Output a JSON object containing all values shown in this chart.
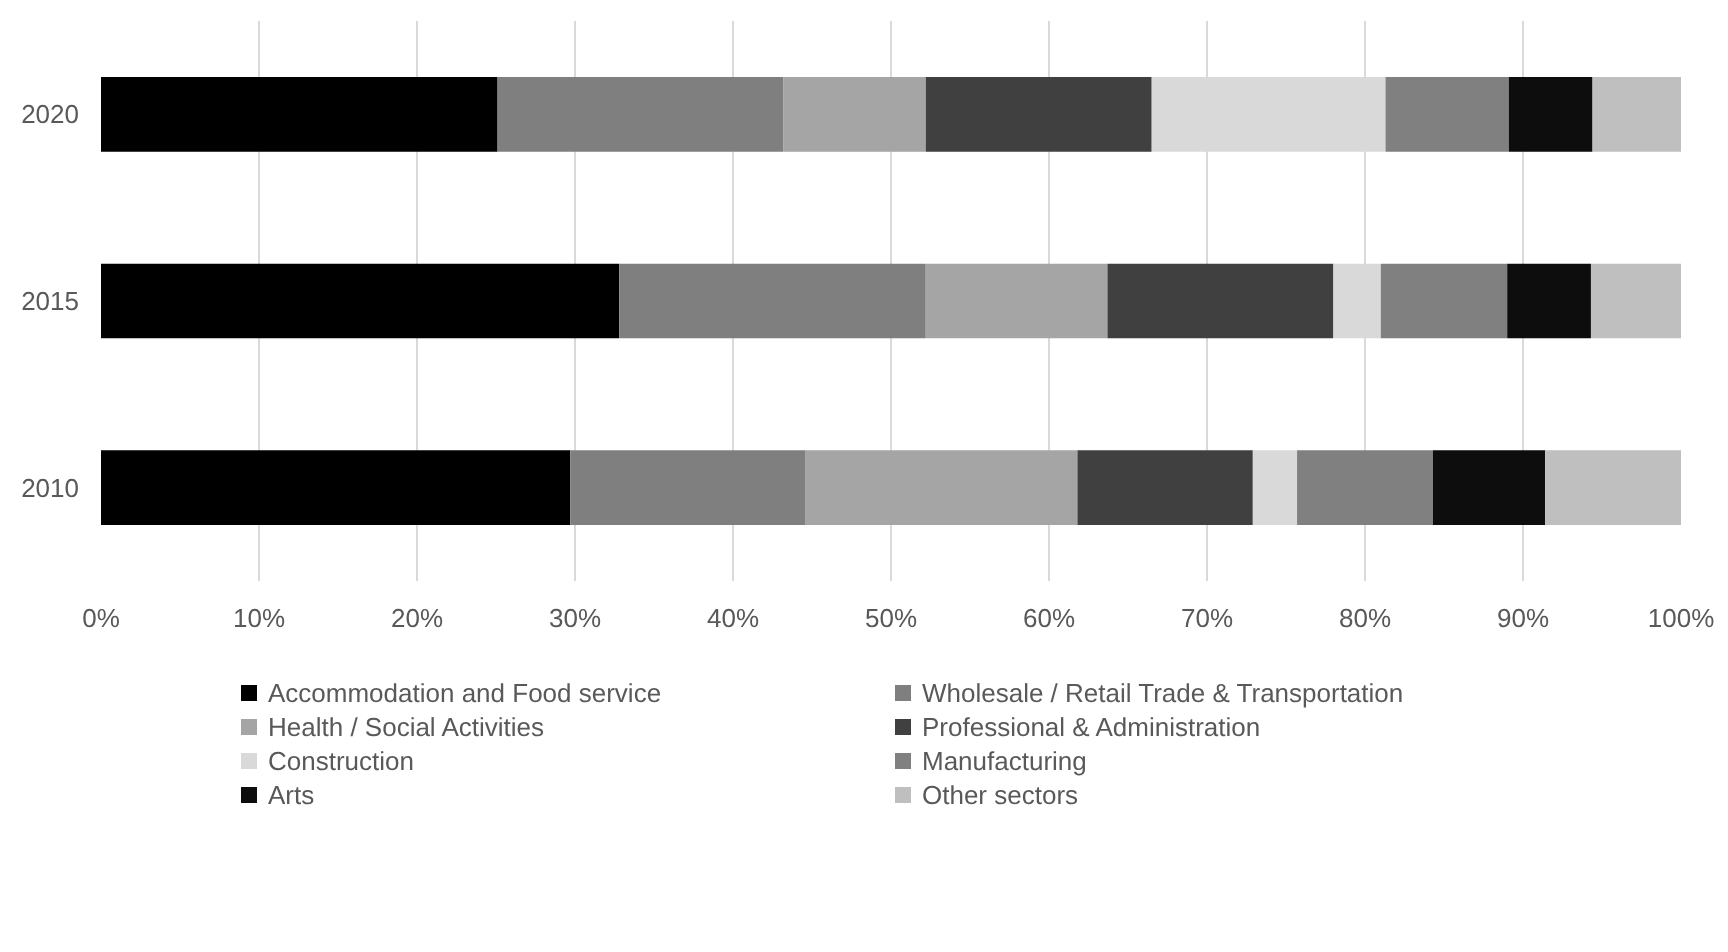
{
  "chart_data": {
    "type": "bar",
    "orientation": "horizontal",
    "stacked": true,
    "categories": [
      "2020",
      "2015",
      "2010"
    ],
    "series": [
      {
        "name": "Accommodation and Food service",
        "color": "#000000",
        "values": [
          25.1,
          32.8,
          29.7
        ]
      },
      {
        "name": "Wholesale / Retail Trade & Transportation",
        "color": "#7f7f7f",
        "values": [
          18.1,
          19.4,
          14.9
        ]
      },
      {
        "name": "Health / Social Activities",
        "color": "#a5a5a5",
        "values": [
          9.0,
          11.5,
          17.2
        ]
      },
      {
        "name": "Professional & Administration",
        "color": "#404040",
        "values": [
          14.3,
          14.3,
          11.1
        ]
      },
      {
        "name": "Construction",
        "color": "#d9d9d9",
        "values": [
          14.8,
          3.0,
          2.8
        ]
      },
      {
        "name": "Manufacturing",
        "color": "#808080",
        "values": [
          7.8,
          8.0,
          8.6
        ]
      },
      {
        "name": "Arts",
        "color": "#0d0d0d",
        "values": [
          5.3,
          5.3,
          7.1
        ]
      },
      {
        "name": "Other sectors",
        "color": "#bfbfbf",
        "values": [
          5.6,
          5.7,
          8.6
        ]
      }
    ],
    "xlim": [
      0,
      100
    ],
    "xticks": [
      {
        "value": 0,
        "label": "0%"
      },
      {
        "value": 10,
        "label": "10%"
      },
      {
        "value": 20,
        "label": "20%"
      },
      {
        "value": 30,
        "label": "30%"
      },
      {
        "value": 40,
        "label": "40%"
      },
      {
        "value": 50,
        "label": "50%"
      },
      {
        "value": 60,
        "label": "60%"
      },
      {
        "value": 70,
        "label": "70%"
      },
      {
        "value": 80,
        "label": "80%"
      },
      {
        "value": 90,
        "label": "90%"
      },
      {
        "value": 100,
        "label": "100%"
      }
    ],
    "grid": "x",
    "legend": "bottom"
  }
}
